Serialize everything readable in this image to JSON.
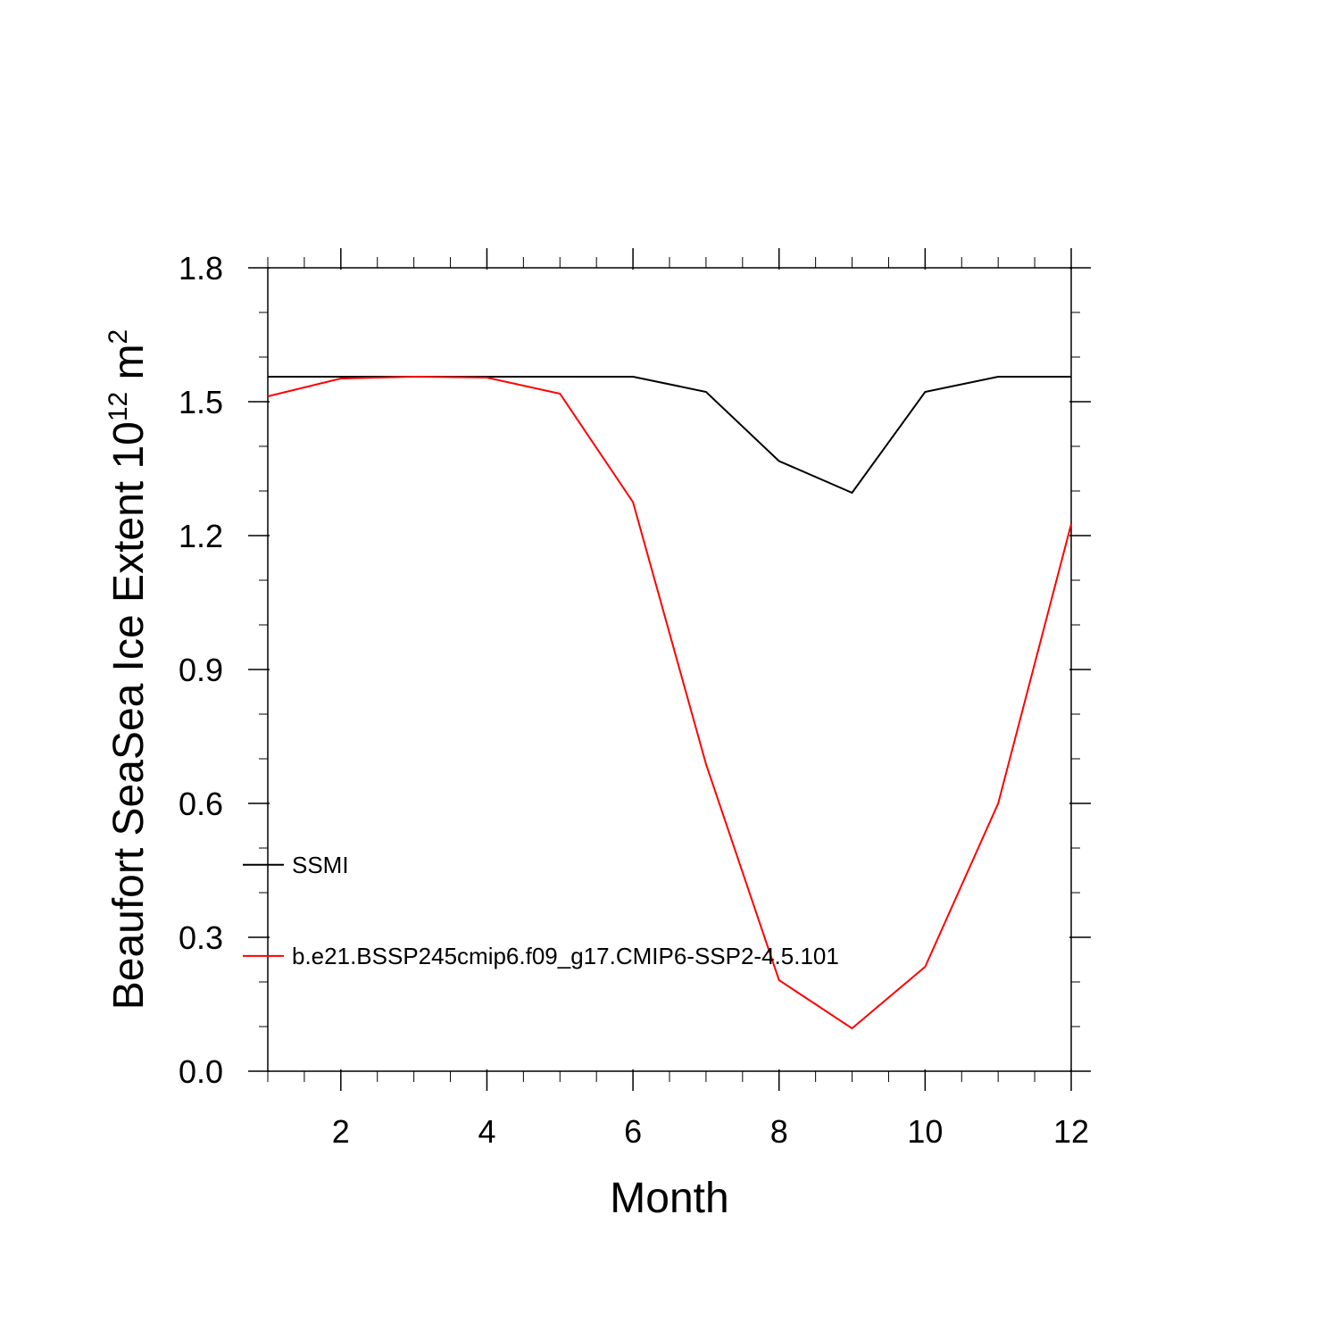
{
  "chart_data": {
    "type": "line",
    "title": "",
    "xlabel": "Month",
    "ylabel": {
      "main": "Beaufort SeaSea Ice Extent 10",
      "sup": "12",
      "unit": " m",
      "unit_sup": "2"
    },
    "xlim": [
      1,
      12
    ],
    "ylim": [
      0.0,
      1.8
    ],
    "x_ticks": [
      2,
      4,
      6,
      8,
      10,
      12
    ],
    "x_tick_labels": [
      "2",
      "4",
      "6",
      "8",
      "10",
      "12"
    ],
    "y_ticks": [
      0.0,
      0.3,
      0.6,
      0.9,
      1.2,
      1.5,
      1.8
    ],
    "y_tick_labels": [
      "0.0",
      "0.3",
      "0.6",
      "0.9",
      "1.2",
      "1.5",
      "1.8"
    ],
    "grid": false,
    "legend_position": "lower-left",
    "x": [
      1,
      2,
      3,
      4,
      5,
      6,
      7,
      8,
      9,
      10,
      11,
      12
    ],
    "series": [
      {
        "name": "SSMI",
        "color": "#000000",
        "values": [
          1.556,
          1.556,
          1.556,
          1.556,
          1.556,
          1.556,
          1.522,
          1.367,
          1.296,
          1.522,
          1.556,
          1.556
        ]
      },
      {
        "name": "b.e21.BSSP245cmip6.f09_g17.CMIP6-SSP2-4.5.101",
        "color": "#ff0000",
        "values": [
          1.512,
          1.552,
          1.556,
          1.554,
          1.518,
          1.275,
          0.688,
          0.204,
          0.096,
          0.234,
          0.6,
          1.226
        ]
      }
    ]
  }
}
